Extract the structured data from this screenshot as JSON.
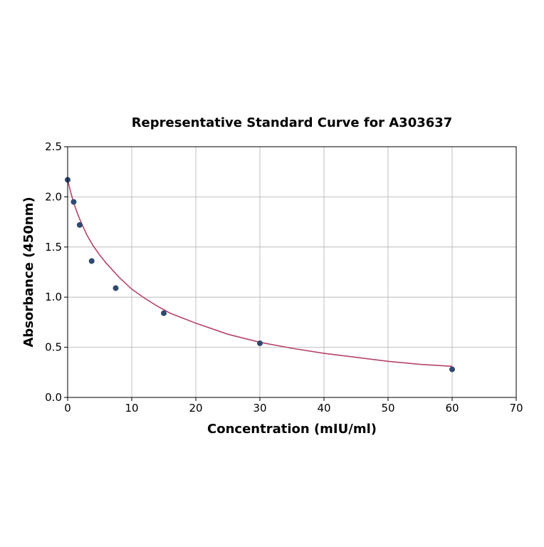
{
  "chart_data": {
    "type": "scatter",
    "title": "Representative Standard Curve for A303637",
    "xlabel": "Concentration (mIU/ml)",
    "ylabel": "Absorbance (450nm)",
    "xlim": [
      0,
      70
    ],
    "ylim": [
      0,
      2.5
    ],
    "x_ticks": [
      "0",
      "10",
      "20",
      "30",
      "40",
      "50",
      "60",
      "70"
    ],
    "y_ticks": [
      "0.0",
      "0.5",
      "1.0",
      "1.5",
      "2.0",
      "2.5"
    ],
    "x_tick_values": [
      0,
      10,
      20,
      30,
      40,
      50,
      60,
      70
    ],
    "y_tick_values": [
      0,
      0.5,
      1.0,
      1.5,
      2.0,
      2.5
    ],
    "grid": true,
    "points": [
      {
        "x": 0,
        "y": 2.17
      },
      {
        "x": 0.94,
        "y": 1.95
      },
      {
        "x": 1.88,
        "y": 1.72
      },
      {
        "x": 3.75,
        "y": 1.36
      },
      {
        "x": 7.5,
        "y": 1.09
      },
      {
        "x": 15,
        "y": 0.84
      },
      {
        "x": 30,
        "y": 0.54
      },
      {
        "x": 60,
        "y": 0.28
      }
    ],
    "fit_curve": {
      "x": [
        0,
        0.5,
        1,
        1.5,
        2,
        3,
        4,
        5,
        6,
        7,
        8,
        10,
        12,
        14,
        16,
        18,
        20,
        25,
        30,
        35,
        40,
        45,
        50,
        55,
        60
      ],
      "y": [
        2.17,
        2.04,
        1.93,
        1.84,
        1.76,
        1.62,
        1.51,
        1.42,
        1.34,
        1.27,
        1.2,
        1.08,
        0.99,
        0.91,
        0.84,
        0.79,
        0.74,
        0.63,
        0.55,
        0.49,
        0.44,
        0.4,
        0.36,
        0.33,
        0.31
      ]
    },
    "colors": {
      "point": "#2e4a6e",
      "curve": "#b5446a",
      "grid": "#b0b0b0",
      "axis": "#000000"
    }
  }
}
